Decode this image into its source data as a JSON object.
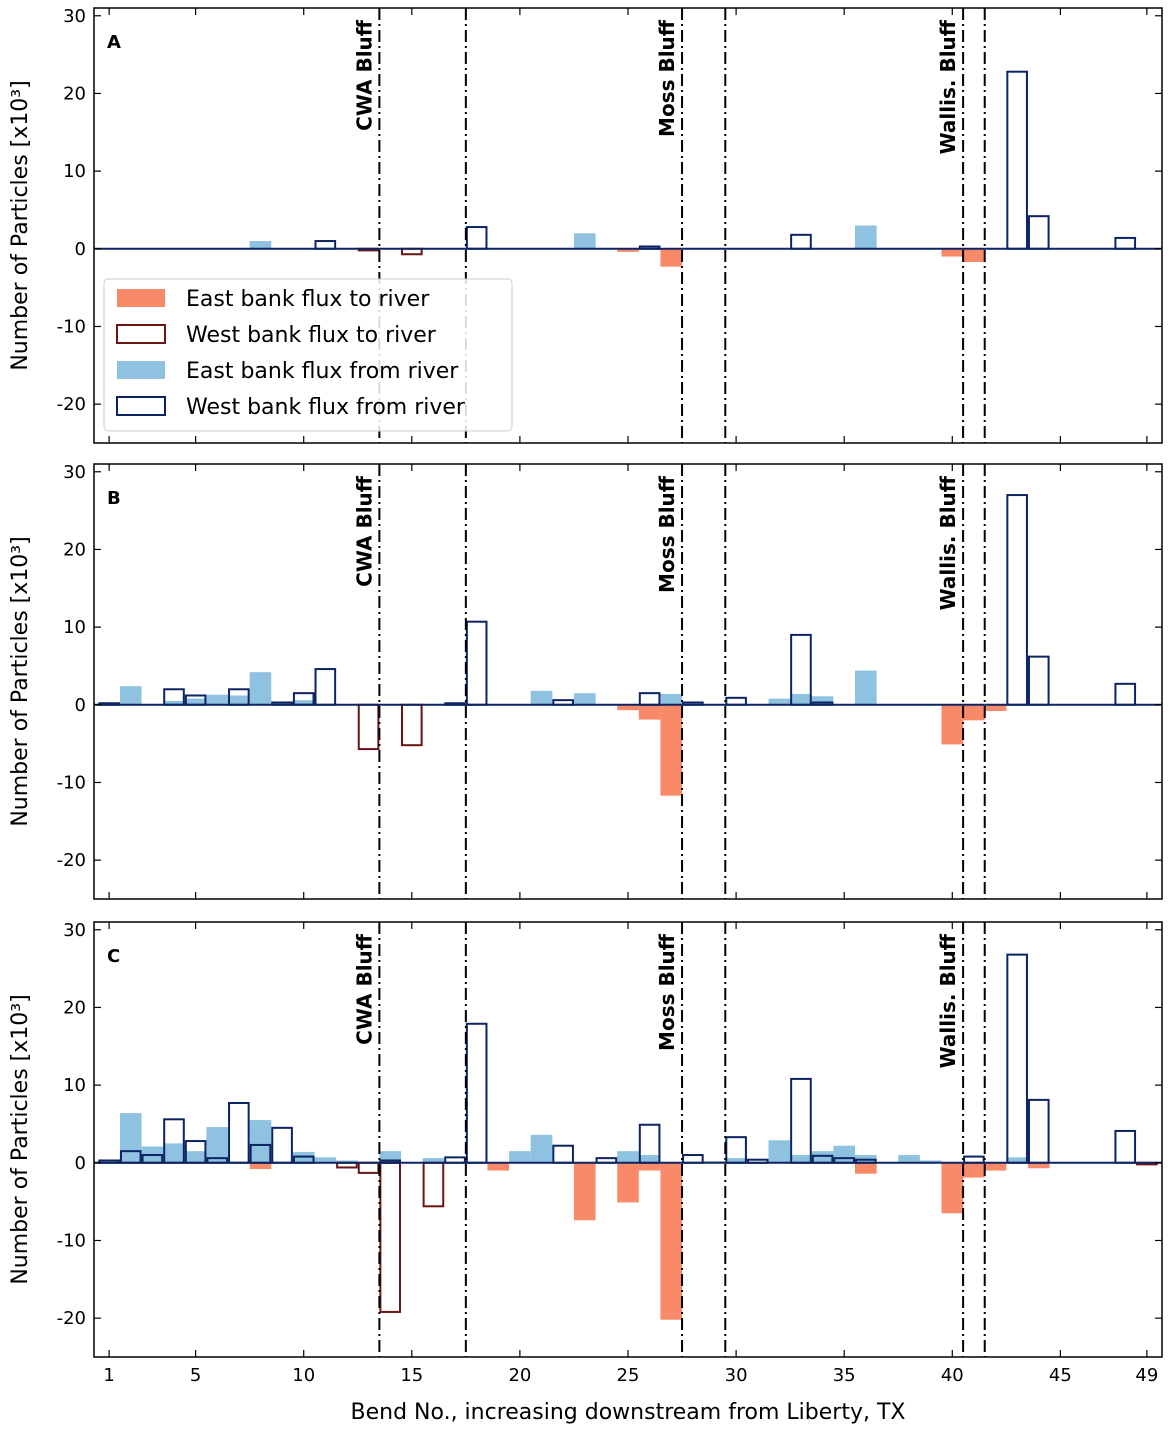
{
  "chart_data": {
    "type": "bar",
    "xlabel": "Bend No., increasing downstream from Liberty, TX",
    "ylabel": "Number of Particles [x10³]",
    "xlim": [
      0.3,
      49.7
    ],
    "ylim": [
      -25,
      31
    ],
    "xticks": [
      1,
      5,
      10,
      15,
      20,
      25,
      30,
      35,
      40,
      45,
      49
    ],
    "yticks": [
      -20,
      -10,
      0,
      10,
      20,
      30
    ],
    "series_styles": {
      "east_to": {
        "name": "East bank flux to river",
        "fill": "#f88a6a",
        "stroke": "none"
      },
      "west_to": {
        "name": "West bank flux to river",
        "fill": "none",
        "stroke": "#6b1414"
      },
      "east_from": {
        "name": "East bank flux from river",
        "fill": "#8fc2e0",
        "stroke": "none"
      },
      "west_from": {
        "name": "West bank flux from river",
        "fill": "none",
        "stroke": "#0d2463"
      }
    },
    "bluffs": [
      {
        "label": "CWA Bluff",
        "lines": [
          13.5,
          17.5
        ]
      },
      {
        "label": "Moss Bluff",
        "lines": [
          27.5,
          29.5
        ]
      },
      {
        "label": "Wallis. Bluff",
        "lines": [
          40.5,
          41.5
        ]
      }
    ],
    "panels": [
      {
        "label": "A",
        "series": {
          "east_to": [
            [
              25,
              -0.4
            ],
            [
              27,
              -2.3
            ],
            [
              40,
              -1.0
            ],
            [
              41,
              -1.7
            ]
          ],
          "west_to": [
            [
              13,
              -0.2
            ],
            [
              15,
              -0.7
            ]
          ],
          "east_from": [
            [
              8,
              1.0
            ],
            [
              23,
              2.0
            ],
            [
              36,
              3.0
            ]
          ],
          "west_from": [
            [
              11,
              1.0
            ],
            [
              18,
              2.8
            ],
            [
              26,
              0.3
            ],
            [
              33,
              1.8
            ],
            [
              43,
              22.8
            ],
            [
              44,
              4.2
            ],
            [
              48,
              1.4
            ]
          ]
        }
      },
      {
        "label": "B",
        "series": {
          "east_to": [
            [
              25,
              -0.7
            ],
            [
              26,
              -1.9
            ],
            [
              27,
              -11.7
            ],
            [
              40,
              -5.1
            ],
            [
              41,
              -2.0
            ],
            [
              42,
              -0.8
            ]
          ],
          "west_to": [
            [
              13,
              -5.7
            ],
            [
              15,
              -5.2
            ]
          ],
          "east_from": [
            [
              2,
              2.4
            ],
            [
              4,
              0.5
            ],
            [
              5,
              0.8
            ],
            [
              6,
              1.3
            ],
            [
              7,
              1.2
            ],
            [
              8,
              4.2
            ],
            [
              9,
              0.4
            ],
            [
              10,
              0.6
            ],
            [
              21,
              1.8
            ],
            [
              23,
              1.5
            ],
            [
              27,
              1.4
            ],
            [
              32,
              0.8
            ],
            [
              33,
              1.4
            ],
            [
              34,
              1.1
            ],
            [
              36,
              4.4
            ]
          ],
          "west_from": [
            [
              1,
              0.2
            ],
            [
              4,
              2.0
            ],
            [
              5,
              1.2
            ],
            [
              7,
              2.0
            ],
            [
              9,
              0.3
            ],
            [
              10,
              1.5
            ],
            [
              11,
              4.6
            ],
            [
              17,
              0.2
            ],
            [
              18,
              10.7
            ],
            [
              22,
              0.6
            ],
            [
              26,
              1.5
            ],
            [
              28,
              0.3
            ],
            [
              30,
              0.9
            ],
            [
              33,
              9.0
            ],
            [
              34,
              0.3
            ],
            [
              43,
              27.0
            ],
            [
              44,
              6.2
            ],
            [
              48,
              2.7
            ]
          ]
        }
      },
      {
        "label": "C",
        "series": {
          "east_to": [
            [
              8,
              -0.8
            ],
            [
              19,
              -1.0
            ],
            [
              23,
              -7.4
            ],
            [
              25,
              -5.1
            ],
            [
              26,
              -1.0
            ],
            [
              27,
              -20.2
            ],
            [
              36,
              -1.4
            ],
            [
              40,
              -6.5
            ],
            [
              41,
              -1.9
            ],
            [
              42,
              -1.0
            ],
            [
              44,
              -0.7
            ]
          ],
          "west_to": [
            [
              12,
              -0.6
            ],
            [
              13,
              -1.3
            ],
            [
              14,
              -19.2
            ],
            [
              16,
              -5.6
            ],
            [
              49,
              -0.2
            ]
          ],
          "east_from": [
            [
              2,
              6.4
            ],
            [
              3,
              2.1
            ],
            [
              4,
              2.5
            ],
            [
              5,
              1.5
            ],
            [
              6,
              4.6
            ],
            [
              8,
              5.5
            ],
            [
              10,
              1.4
            ],
            [
              11,
              0.7
            ],
            [
              12,
              0.3
            ],
            [
              14,
              1.5
            ],
            [
              16,
              0.6
            ],
            [
              20,
              1.5
            ],
            [
              21,
              3.6
            ],
            [
              25,
              1.5
            ],
            [
              26,
              1.0
            ],
            [
              29,
              0.2
            ],
            [
              30,
              0.6
            ],
            [
              32,
              2.9
            ],
            [
              33,
              1.0
            ],
            [
              34,
              1.5
            ],
            [
              35,
              2.2
            ],
            [
              36,
              1.0
            ],
            [
              38,
              1.0
            ],
            [
              39,
              0.3
            ],
            [
              43,
              0.7
            ]
          ],
          "west_from": [
            [
              1,
              0.3
            ],
            [
              2,
              1.5
            ],
            [
              3,
              1.0
            ],
            [
              4,
              5.6
            ],
            [
              5,
              2.8
            ],
            [
              6,
              0.6
            ],
            [
              7,
              7.7
            ],
            [
              8,
              2.3
            ],
            [
              9,
              4.5
            ],
            [
              10,
              0.8
            ],
            [
              14,
              0.3
            ],
            [
              17,
              0.7
            ],
            [
              18,
              17.9
            ],
            [
              22,
              2.2
            ],
            [
              24,
              0.6
            ],
            [
              26,
              4.9
            ],
            [
              28,
              1.0
            ],
            [
              30,
              3.3
            ],
            [
              31,
              0.4
            ],
            [
              33,
              10.8
            ],
            [
              34,
              0.9
            ],
            [
              35,
              0.6
            ],
            [
              36,
              0.4
            ],
            [
              41,
              0.8
            ],
            [
              43,
              26.8
            ],
            [
              44,
              8.1
            ],
            [
              48,
              4.1
            ]
          ]
        }
      }
    ],
    "legend": [
      {
        "key": "east_to",
        "label": "East bank flux to river"
      },
      {
        "key": "west_to",
        "label": "West bank flux to river"
      },
      {
        "key": "east_from",
        "label": "East bank flux from river"
      },
      {
        "key": "west_from",
        "label": "West bank flux from river"
      }
    ]
  }
}
